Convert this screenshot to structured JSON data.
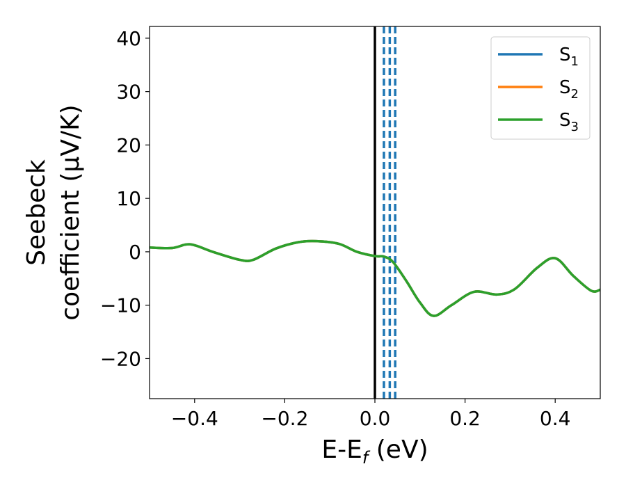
{
  "chart_data": {
    "type": "line",
    "xlabel": {
      "main": "E-E",
      "sub": "f",
      "unit": " (eV)"
    },
    "ylabel": {
      "line1": "Seebeck",
      "line2": "coefficient  (μV/K)"
    },
    "xlim": [
      -0.5,
      0.5
    ],
    "ylim": [
      -27.5,
      42.2
    ],
    "x_ticks": [
      -0.4,
      -0.2,
      0.0,
      0.2,
      0.4
    ],
    "x_tick_labels": [
      "−0.4",
      "−0.2",
      "0.0",
      "0.2",
      "0.4"
    ],
    "y_ticks": [
      -20,
      -10,
      0,
      10,
      20,
      30,
      40
    ],
    "y_tick_labels": [
      "−20",
      "−10",
      "0",
      "10",
      "20",
      "30",
      "40"
    ],
    "grid": false,
    "legend_position": "top-right",
    "series": [
      {
        "name": "S",
        "sub": "1",
        "color": "#1f77b4",
        "x": [
          -0.5,
          -0.45,
          -0.41,
          -0.36,
          -0.3,
          -0.27,
          -0.22,
          -0.17,
          -0.13,
          -0.08,
          -0.04,
          0.0,
          0.02,
          0.04,
          0.07,
          0.1,
          0.13,
          0.17,
          0.22,
          0.27,
          0.31,
          0.36,
          0.4,
          0.44,
          0.48,
          0.5
        ],
        "y": [
          0.8,
          0.7,
          1.4,
          0.0,
          -1.5,
          -1.5,
          0.6,
          1.8,
          2.0,
          1.5,
          0.0,
          -0.8,
          -0.9,
          -1.9,
          -5.5,
          -9.5,
          -12.0,
          -10.0,
          -7.5,
          -8.0,
          -7.0,
          -3.0,
          -1.2,
          -4.5,
          -7.3,
          -7.1
        ]
      },
      {
        "name": "S",
        "sub": "2",
        "color": "#ff7f0e",
        "x": [
          -0.5,
          -0.45,
          -0.41,
          -0.36,
          -0.3,
          -0.27,
          -0.22,
          -0.17,
          -0.13,
          -0.08,
          -0.04,
          0.0,
          0.02,
          0.04,
          0.07,
          0.1,
          0.13,
          0.17,
          0.22,
          0.27,
          0.31,
          0.36,
          0.4,
          0.44,
          0.48,
          0.5
        ],
        "y": [
          0.8,
          0.7,
          1.4,
          0.0,
          -1.5,
          -1.5,
          0.6,
          1.8,
          2.0,
          1.5,
          0.0,
          -0.8,
          -0.9,
          -1.9,
          -5.5,
          -9.5,
          -12.0,
          -10.0,
          -7.5,
          -8.0,
          -7.0,
          -3.0,
          -1.2,
          -4.5,
          -7.3,
          -7.1
        ]
      },
      {
        "name": "S",
        "sub": "3",
        "color": "#2ca02c",
        "x": [
          -0.5,
          -0.45,
          -0.41,
          -0.36,
          -0.3,
          -0.27,
          -0.22,
          -0.17,
          -0.13,
          -0.08,
          -0.04,
          0.0,
          0.02,
          0.04,
          0.07,
          0.1,
          0.13,
          0.17,
          0.22,
          0.27,
          0.31,
          0.36,
          0.4,
          0.44,
          0.48,
          0.5
        ],
        "y": [
          0.8,
          0.7,
          1.4,
          0.0,
          -1.5,
          -1.5,
          0.6,
          1.8,
          2.0,
          1.5,
          0.0,
          -0.8,
          -0.9,
          -1.9,
          -5.5,
          -9.5,
          -12.0,
          -10.0,
          -7.5,
          -8.0,
          -7.0,
          -3.0,
          -1.2,
          -4.5,
          -7.3,
          -7.1
        ]
      }
    ],
    "vertical_lines": [
      {
        "x": 0.0,
        "style": "solid",
        "color": "#000000"
      },
      {
        "x": 0.02,
        "style": "dashed",
        "color": "#1f77b4"
      },
      {
        "x": 0.033,
        "style": "dashed",
        "color": "#1f77b4"
      },
      {
        "x": 0.045,
        "style": "dashed",
        "color": "#1f77b4"
      }
    ]
  }
}
